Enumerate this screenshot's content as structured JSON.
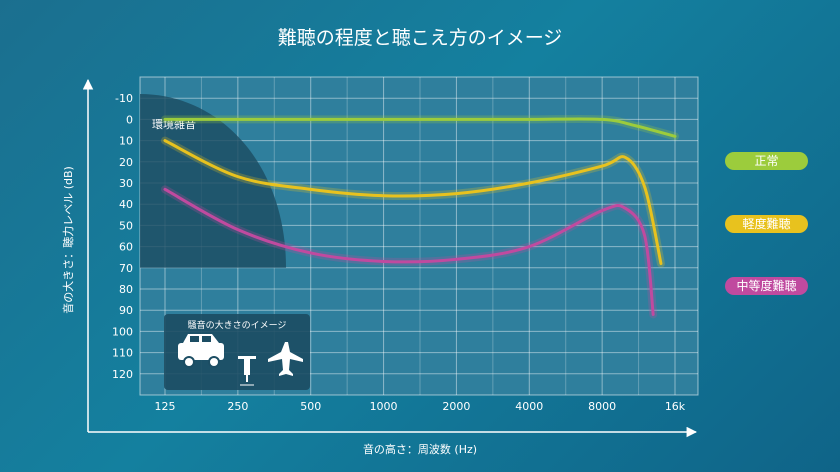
{
  "chart_data": {
    "type": "line",
    "title": "難聴の程度と聴こえ方のイメージ",
    "xlabel": "音の高さ：周波数 (Hz)",
    "ylabel": "音の大きさ：聴力レベル (dB)",
    "x_ticks": [
      "125",
      "250",
      "500",
      "1000",
      "2000",
      "4000",
      "8000",
      "16k"
    ],
    "y_ticks": [
      "-10",
      "0",
      "10",
      "20",
      "30",
      "40",
      "50",
      "60",
      "70",
      "80",
      "90",
      "100",
      "110",
      "120"
    ],
    "ylim": [
      -20,
      130
    ],
    "y_inverted": true,
    "grid": true,
    "legend_placement": "right",
    "ambient_noise_label": "環境雑音",
    "noise_box_title": "騒音の大きさのイメージ",
    "noise_box_icons": [
      "car-icon",
      "jackhammer-icon",
      "airplane-icon"
    ],
    "series": [
      {
        "name": "正常",
        "color": "#9ccc3c",
        "x": [
          125,
          250,
          500,
          1000,
          2000,
          4000,
          8000,
          11000,
          16000
        ],
        "values": [
          0,
          0,
          0,
          0,
          0,
          0,
          0,
          3,
          8
        ]
      },
      {
        "name": "軽度難聴",
        "color": "#e8c21e",
        "x": [
          125,
          250,
          500,
          1000,
          2000,
          4000,
          8000,
          10000,
          12000,
          14000
        ],
        "values": [
          10,
          27,
          33,
          36,
          35,
          30,
          22,
          18,
          32,
          68
        ]
      },
      {
        "name": "中等度難聴",
        "color": "#c04a9f",
        "x": [
          125,
          250,
          500,
          1000,
          2000,
          4000,
          8000,
          10000,
          12000,
          13000
        ],
        "values": [
          33,
          52,
          63,
          67,
          66,
          60,
          43,
          42,
          55,
          92
        ]
      }
    ]
  }
}
